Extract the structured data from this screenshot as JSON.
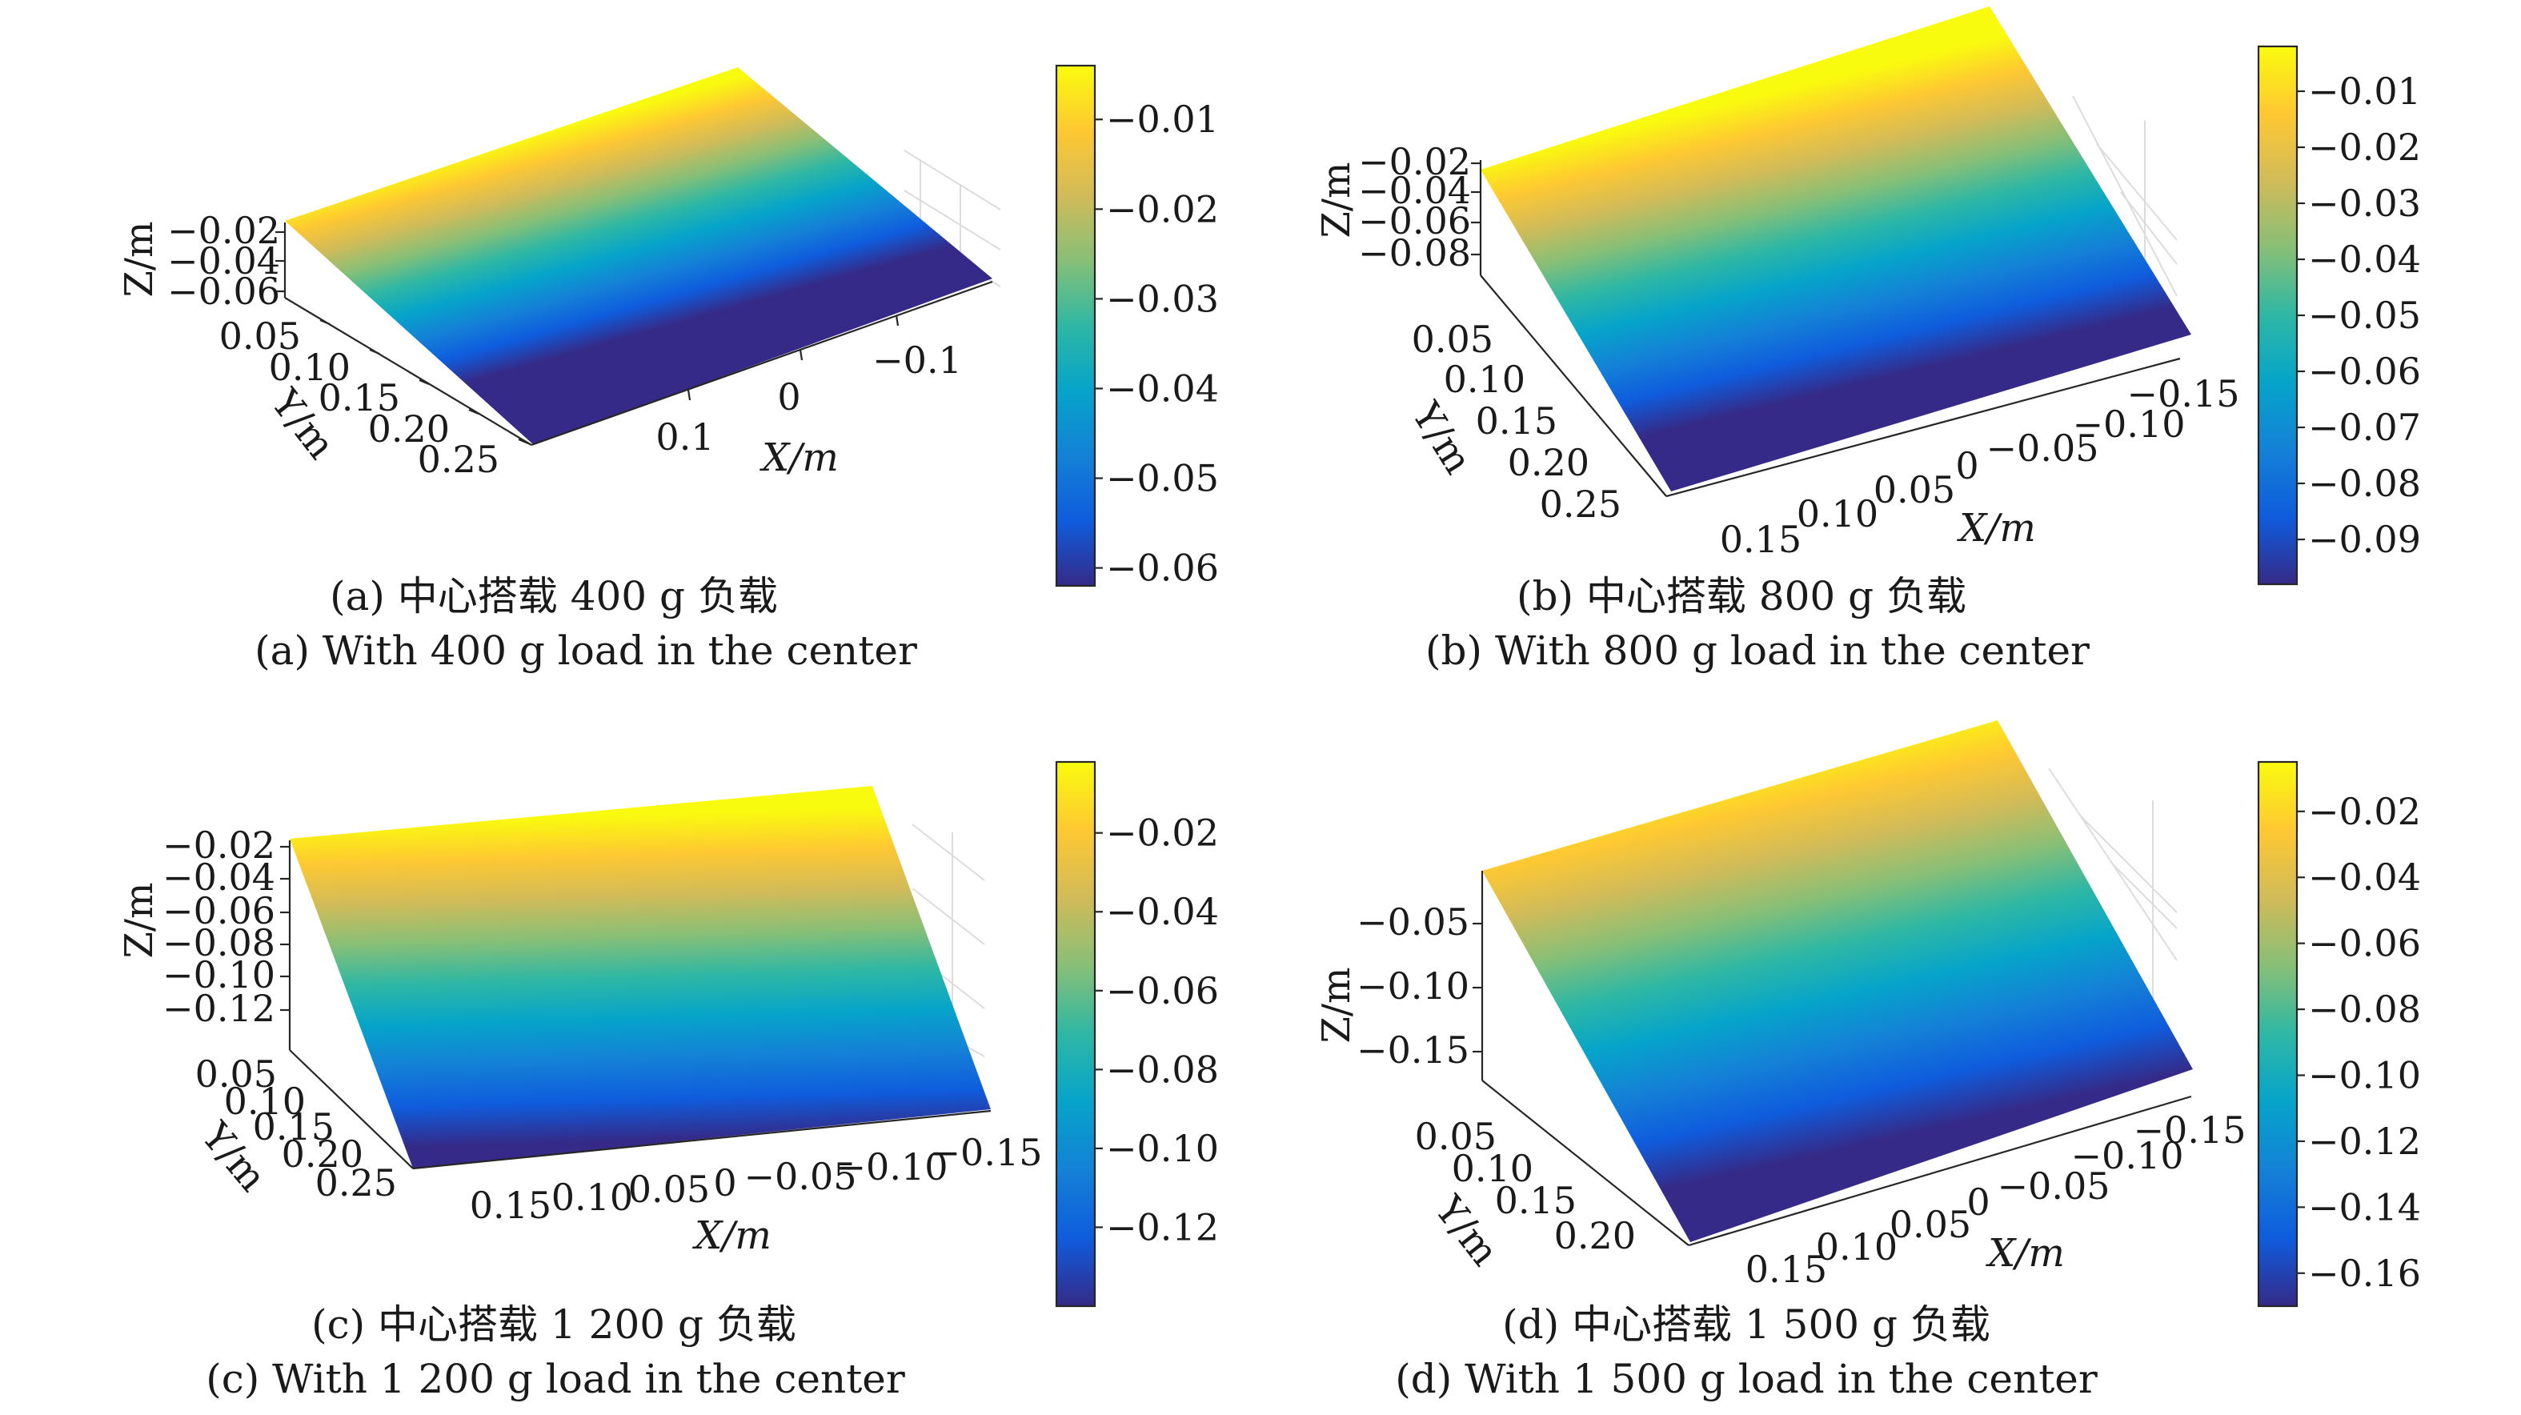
{
  "colormap": {
    "name": "parula",
    "stops": [
      "#352a87",
      "#0f5cdd",
      "#1481d6",
      "#06a4ca",
      "#2eb7a4",
      "#87bf77",
      "#d1bb59",
      "#fec832",
      "#f9fb0e"
    ]
  },
  "chart_data": [
    {
      "type": "surface",
      "caption_zh": "(a) 中心搭载 400 g 负载",
      "caption_en": "(a) With 400 g load in the center",
      "xlabel": "X/m",
      "ylabel": "Y/m",
      "zlabel": "Z/m",
      "x_ticks": [
        "0.1",
        "0",
        "−0.1"
      ],
      "y_ticks": [
        "0.05",
        "0.10",
        "0.15",
        "0.20",
        "0.25"
      ],
      "z_ticks": [
        "−0.02",
        "−0.04",
        "−0.06"
      ],
      "colorbar_ticks": [
        "−0.01",
        "−0.02",
        "−0.03",
        "−0.04",
        "−0.05",
        "−0.06"
      ],
      "colorbar_range": [
        -0.062,
        -0.004
      ]
    },
    {
      "type": "surface",
      "caption_zh": "(b) 中心搭载 800 g 负载",
      "caption_en": "(b) With 800 g load in the center",
      "xlabel": "X/m",
      "ylabel": "Y/m",
      "zlabel": "Z/m",
      "x_ticks": [
        "0.15",
        "0.10",
        "0.05",
        "0",
        "−0.05",
        "−0.10",
        "−0.15"
      ],
      "y_ticks": [
        "0.05",
        "0.10",
        "0.15",
        "0.20",
        "0.25"
      ],
      "z_ticks": [
        "−0.02",
        "−0.04",
        "−0.06",
        "−0.08"
      ],
      "colorbar_ticks": [
        "−0.01",
        "−0.02",
        "−0.03",
        "−0.04",
        "−0.05",
        "−0.06",
        "−0.07",
        "−0.08",
        "−0.09"
      ],
      "colorbar_range": [
        -0.098,
        -0.002
      ]
    },
    {
      "type": "surface",
      "caption_zh": "(c) 中心搭载 1 200 g 负载",
      "caption_en": "(c) With 1 200 g load in the center",
      "xlabel": "X/m",
      "ylabel": "Y/m",
      "zlabel": "Z/m",
      "x_ticks": [
        "0.15",
        "0.10",
        "0.05",
        "0",
        "−0.05",
        "−0.10",
        "−0.15"
      ],
      "y_ticks": [
        "0.05",
        "0.10",
        "0.15",
        "0.20",
        "0.25"
      ],
      "z_ticks": [
        "−0.02",
        "−0.04",
        "−0.06",
        "−0.08",
        "−0.10",
        "−0.12"
      ],
      "colorbar_ticks": [
        "−0.02",
        "−0.04",
        "−0.06",
        "−0.08",
        "−0.10",
        "−0.12"
      ],
      "colorbar_range": [
        -0.14,
        -0.002
      ]
    },
    {
      "type": "surface",
      "caption_zh": "(d) 中心搭载 1 500 g 负载",
      "caption_en": "(d) With 1 500 g load in the center",
      "xlabel": "X/m",
      "ylabel": "Y/m",
      "zlabel": "Z/m",
      "x_ticks": [
        "0.15",
        "0.10",
        "0.05",
        "0",
        "−0.05",
        "−0.10",
        "−0.15"
      ],
      "y_ticks": [
        "0.05",
        "0.10",
        "0.15",
        "0.20"
      ],
      "z_ticks": [
        "−0.05",
        "−0.10",
        "−0.15"
      ],
      "colorbar_ticks": [
        "−0.02",
        "−0.04",
        "−0.06",
        "−0.08",
        "−0.10",
        "−0.12",
        "−0.14",
        "−0.16"
      ],
      "colorbar_range": [
        -0.17,
        -0.005
      ]
    }
  ]
}
